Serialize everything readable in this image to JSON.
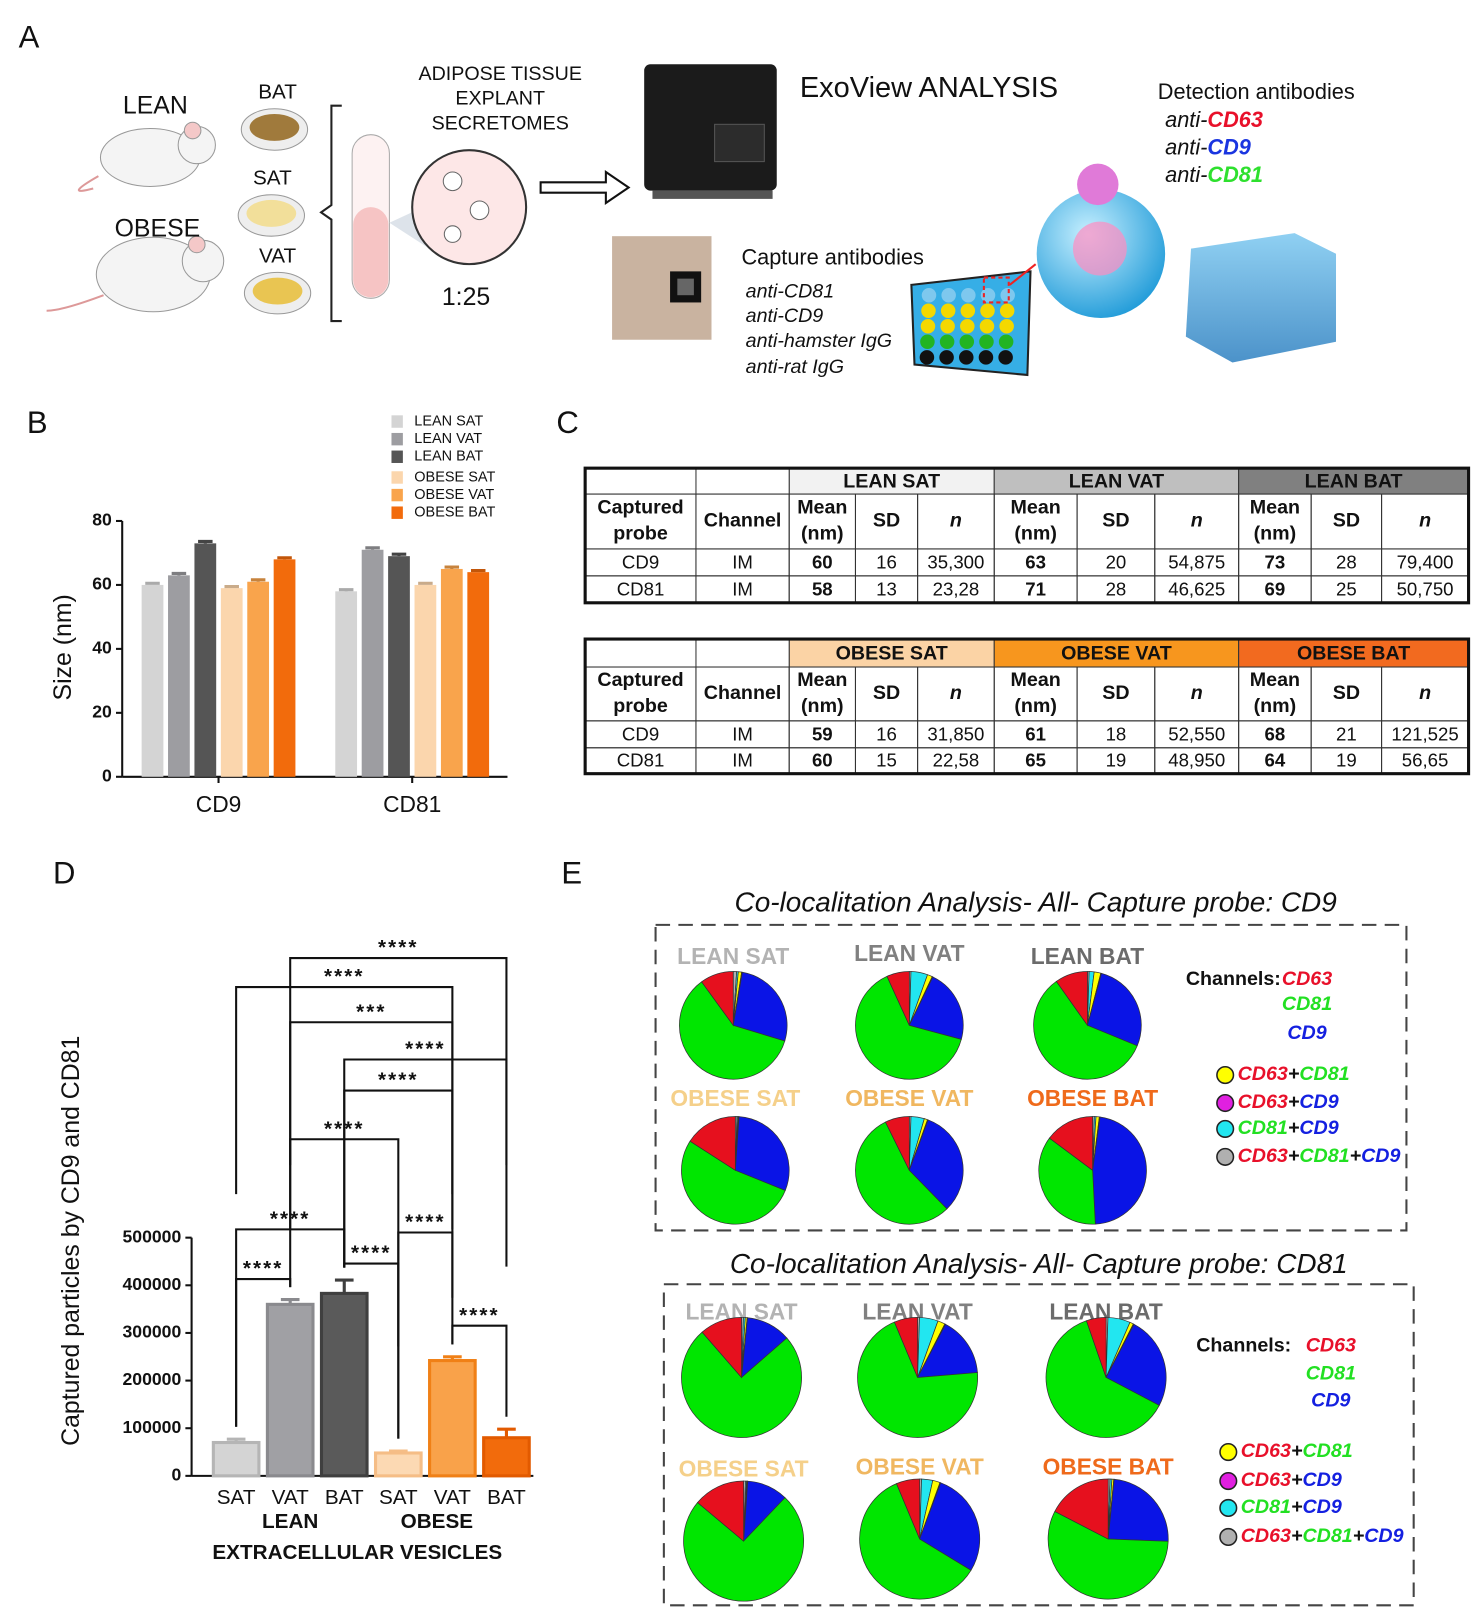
{
  "panel_labels": [
    "A",
    "B",
    "C",
    "D",
    "E"
  ],
  "panel_a": {
    "groups": [
      "LEAN",
      "OBESE"
    ],
    "tissues": [
      "BAT",
      "SAT",
      "VAT"
    ],
    "secretomes": [
      "ADIPOSE TISSUE",
      "EXPLANT",
      "SECRETOMES"
    ],
    "dilution": "1:25",
    "instrument": "ExoView ANALYSIS",
    "detection_title": "Detection antibodies",
    "detection": [
      {
        "prefix": "anti-",
        "name": "CD63",
        "color": "#e8102a"
      },
      {
        "prefix": "anti-",
        "name": "CD9",
        "color": "#1a35e0"
      },
      {
        "prefix": "anti-",
        "name": "CD81",
        "color": "#2ee02e"
      }
    ],
    "capture_title": "Capture antibodies",
    "capture": [
      "anti-CD81",
      "anti-CD9",
      "anti-hamster IgG",
      "anti-rat IgG"
    ]
  },
  "chart_data": [
    {
      "type": "grouped_bar",
      "ylabel": "Size (nm)",
      "categories": [
        "CD9",
        "CD81"
      ],
      "ylim": [
        0,
        80
      ],
      "yticks": [
        0,
        20,
        40,
        60,
        80
      ],
      "series": [
        {
          "name": "LEAN SAT",
          "color": "#d4d4d4",
          "values": [
            60,
            58
          ],
          "errors": [
            0.5,
            0.5
          ]
        },
        {
          "name": "LEAN VAT",
          "color": "#9d9da1",
          "values": [
            63,
            71
          ],
          "errors": [
            0.6,
            0.6
          ]
        },
        {
          "name": "LEAN BAT",
          "color": "#555555",
          "values": [
            73,
            69
          ],
          "errors": [
            0.6,
            0.6
          ]
        },
        {
          "name": "OBESE SAT",
          "color": "#fbd6ad",
          "values": [
            59,
            60
          ],
          "errors": [
            0.5,
            0.5
          ]
        },
        {
          "name": "OBESE VAT",
          "color": "#f9a44c",
          "values": [
            61,
            65
          ],
          "errors": [
            0.6,
            0.6
          ]
        },
        {
          "name": "OBESE BAT",
          "color": "#f26b0c",
          "values": [
            68,
            64
          ],
          "errors": [
            0.5,
            0.5
          ]
        }
      ]
    },
    {
      "type": "bar",
      "ylabel": "Captured particles by CD9 and CD81",
      "xlabel": "EXTRACELLULAR VESICLES",
      "categories": [
        "SAT",
        "VAT",
        "BAT",
        "SAT",
        "VAT",
        "BAT"
      ],
      "groups": [
        "LEAN",
        "OBESE"
      ],
      "values": [
        70000,
        360000,
        383000,
        48000,
        242000,
        80000
      ],
      "errors": [
        7000,
        10000,
        28000,
        4000,
        8000,
        18000
      ],
      "colors": [
        "#d4d4d4",
        "#a0a0a4",
        "#5a5a5a",
        "#fcd9b3",
        "#f9a24a",
        "#f26b0c"
      ],
      "edge_colors": [
        "#b5b5b5",
        "#8a8a8e",
        "#3f3f3f",
        "#f5bd86",
        "#f08016",
        "#e25a00"
      ],
      "ylim": [
        0,
        500000
      ],
      "yticks": [
        0,
        100000,
        200000,
        300000,
        400000,
        500000
      ],
      "comparisons": [
        {
          "bars": [
            0,
            1
          ],
          "label": "****"
        },
        {
          "bars": [
            0,
            2
          ],
          "label": "****"
        },
        {
          "bars": [
            2,
            3
          ],
          "label": "****"
        },
        {
          "bars": [
            3,
            4
          ],
          "label": "****"
        },
        {
          "bars": [
            4,
            5
          ],
          "label": "****"
        },
        {
          "bars": [
            1,
            3
          ],
          "label": "****"
        },
        {
          "bars": [
            2,
            4
          ],
          "label": "****"
        },
        {
          "bars": [
            2,
            5
          ],
          "label": "****"
        },
        {
          "bars": [
            1,
            4
          ],
          "label": "***"
        },
        {
          "bars": [
            0,
            4
          ],
          "label": "****"
        },
        {
          "bars": [
            1,
            5
          ],
          "label": "****"
        }
      ]
    },
    {
      "type": "pie",
      "title": "LEAN SAT",
      "title_color": "#b3b3b3",
      "values": [
        1,
        0.5,
        1,
        0.2,
        27,
        60.3,
        10
      ],
      "colors": [
        "#b0b0b0",
        "#22e6f0",
        "#ffff00",
        "#e020e0",
        "#0a14e6",
        "#00e600",
        "#e6101e"
      ]
    },
    {
      "type": "pie",
      "title": "LEAN VAT",
      "title_color": "#808080",
      "values": [
        0.5,
        5,
        1.5,
        0.2,
        22,
        64,
        6.8
      ],
      "colors": [
        "#b0b0b0",
        "#22e6f0",
        "#ffff00",
        "#e020e0",
        "#0a14e6",
        "#00e600",
        "#e6101e"
      ]
    },
    {
      "type": "pie",
      "title": "LEAN BAT",
      "title_color": "#6b6b6b",
      "values": [
        0.5,
        1.5,
        2,
        0.2,
        27,
        59,
        9.8
      ],
      "colors": [
        "#b0b0b0",
        "#22e6f0",
        "#ffff00",
        "#e020e0",
        "#0a14e6",
        "#00e600",
        "#e6101e"
      ]
    },
    {
      "type": "pie",
      "title": "OBESE SAT",
      "title_color": "#f5d08a",
      "values": [
        0.5,
        0.3,
        0.2,
        0.1,
        30,
        53,
        15.9
      ],
      "colors": [
        "#b0b0b0",
        "#22e6f0",
        "#ffff00",
        "#e020e0",
        "#0a14e6",
        "#00e600",
        "#e6101e"
      ]
    },
    {
      "type": "pie",
      "title": "OBESE VAT",
      "title_color": "#f0b760",
      "values": [
        0.5,
        4,
        1,
        0.2,
        32,
        55,
        7.3
      ],
      "colors": [
        "#b0b0b0",
        "#22e6f0",
        "#ffff00",
        "#e020e0",
        "#0a14e6",
        "#00e600",
        "#e6101e"
      ]
    },
    {
      "type": "pie",
      "title": "OBESE BAT",
      "title_color": "#ef6a1b",
      "values": [
        0.5,
        0.5,
        1,
        0.2,
        47,
        36,
        14.8
      ],
      "colors": [
        "#b0b0b0",
        "#22e6f0",
        "#ffff00",
        "#e020e0",
        "#0a14e6",
        "#00e600",
        "#e6101e"
      ]
    },
    {
      "type": "pie",
      "title": "LEAN SAT",
      "title_color": "#b3b3b3",
      "values": [
        0.5,
        0.5,
        0.5,
        0.1,
        12,
        75,
        11.4
      ],
      "colors": [
        "#b0b0b0",
        "#22e6f0",
        "#ffff00",
        "#e020e0",
        "#0a14e6",
        "#00e600",
        "#e6101e"
      ]
    },
    {
      "type": "pie",
      "title": "LEAN VAT",
      "title_color": "#808080",
      "values": [
        0.5,
        5,
        2,
        0.2,
        16,
        70,
        6.3
      ],
      "colors": [
        "#b0b0b0",
        "#22e6f0",
        "#ffff00",
        "#e020e0",
        "#0a14e6",
        "#00e600",
        "#e6101e"
      ]
    },
    {
      "type": "pie",
      "title": "LEAN BAT",
      "title_color": "#6b6b6b",
      "values": [
        0.5,
        6,
        1,
        0.2,
        25,
        62,
        5.3
      ],
      "colors": [
        "#b0b0b0",
        "#22e6f0",
        "#ffff00",
        "#e020e0",
        "#0a14e6",
        "#00e600",
        "#e6101e"
      ]
    },
    {
      "type": "pie",
      "title": "OBESE SAT",
      "title_color": "#f5d08a",
      "values": [
        0.5,
        0.3,
        0.2,
        0.1,
        11,
        74,
        13.9
      ],
      "colors": [
        "#b0b0b0",
        "#22e6f0",
        "#ffff00",
        "#e020e0",
        "#0a14e6",
        "#00e600",
        "#e6101e"
      ]
    },
    {
      "type": "pie",
      "title": "OBESE VAT",
      "title_color": "#f0b760",
      "values": [
        0.5,
        3,
        2,
        0.2,
        28,
        60,
        6.3
      ],
      "colors": [
        "#b0b0b0",
        "#22e6f0",
        "#ffff00",
        "#e020e0",
        "#0a14e6",
        "#00e600",
        "#e6101e"
      ]
    },
    {
      "type": "pie",
      "title": "OBESE BAT",
      "title_color": "#ef6a1b",
      "values": [
        0.5,
        0.5,
        0.5,
        0.1,
        24,
        57,
        17.4
      ],
      "colors": [
        "#b0b0b0",
        "#22e6f0",
        "#ffff00",
        "#e020e0",
        "#0a14e6",
        "#00e600",
        "#e6101e"
      ]
    }
  ],
  "tables": [
    {
      "groups": [
        "LEAN SAT",
        "LEAN VAT",
        "LEAN BAT"
      ],
      "group_colors": [
        "#f2f2f2",
        "#bfbfbf",
        "#808080"
      ],
      "columns": [
        "Captured probe",
        "Channel"
      ],
      "sub_columns": [
        "Mean (nm)",
        "SD",
        "n"
      ],
      "rows": [
        [
          "CD9",
          "IM",
          60,
          16,
          "35,300",
          63,
          20,
          "54,875",
          73,
          28,
          "79,400"
        ],
        [
          "CD81",
          "IM",
          58,
          13,
          "23,28",
          71,
          28,
          "46,625",
          69,
          25,
          "50,750"
        ]
      ]
    },
    {
      "groups": [
        "OBESE SAT",
        "OBESE VAT",
        "OBESE BAT"
      ],
      "group_colors": [
        "#fbd3a5",
        "#f7961e",
        "#f26a1f"
      ],
      "columns": [
        "Captured probe",
        "Channel"
      ],
      "sub_columns": [
        "Mean (nm)",
        "SD",
        "n"
      ],
      "rows": [
        [
          "CD9",
          "IM",
          59,
          16,
          "31,850",
          61,
          18,
          "52,550",
          68,
          21,
          "121,525"
        ],
        [
          "CD81",
          "IM",
          60,
          15,
          "22,58",
          65,
          19,
          "48,950",
          64,
          19,
          "56,65"
        ]
      ]
    }
  ],
  "panel_e": {
    "titles": [
      "Co-localitation Analysis- All- Capture probe: CD9",
      "Co-localitation Analysis- All- Capture probe: CD81"
    ],
    "legend": {
      "title": "Channels:",
      "channels": [
        {
          "name": "CD63",
          "color": "#e8102a"
        },
        {
          "name": "CD81",
          "color": "#22e022"
        },
        {
          "name": "CD9",
          "color": "#1420e0"
        }
      ],
      "combos": [
        {
          "label": "CD63+CD81",
          "color": "#ffff00"
        },
        {
          "label": "CD63+CD9",
          "color": "#e020e0"
        },
        {
          "label": "CD81+CD9",
          "color": "#22e6f0"
        },
        {
          "label": "CD63+CD81+CD9",
          "color": "#b0b0b0"
        }
      ]
    }
  }
}
